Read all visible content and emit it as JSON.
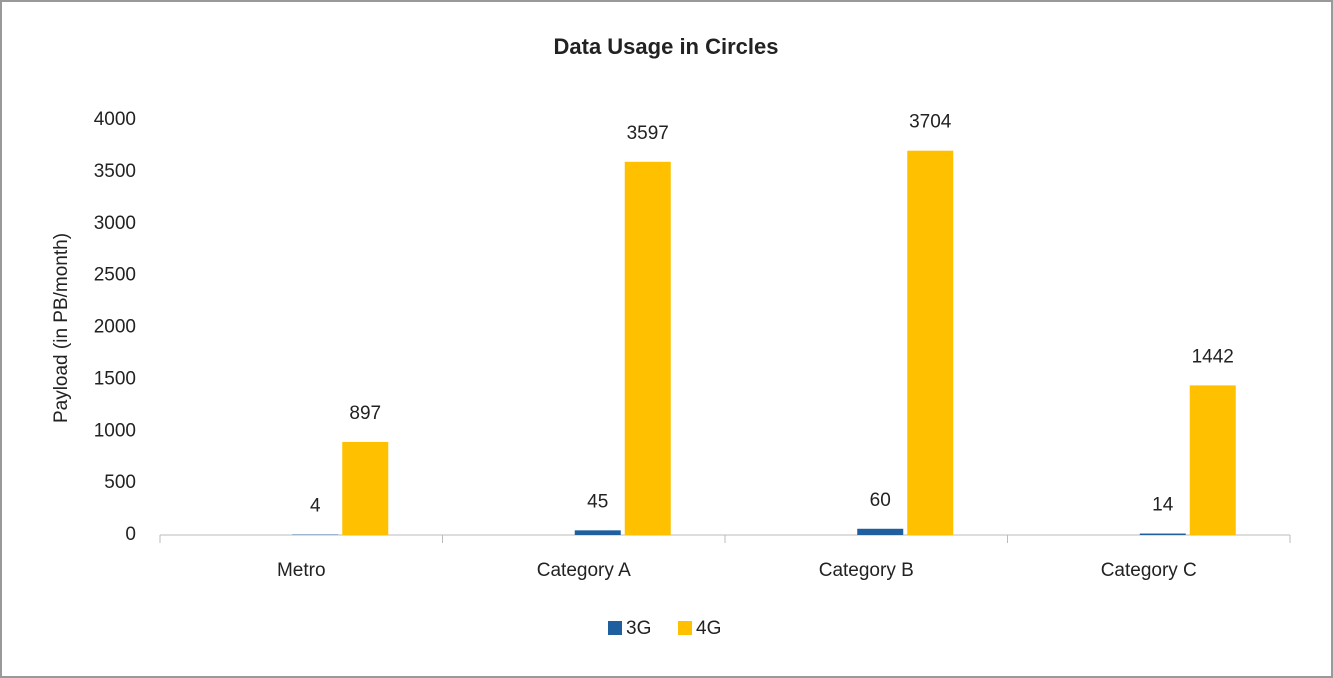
{
  "chart_data": {
    "type": "bar",
    "title": "Data Usage in Circles",
    "y_label": "Payload (in PB/month)",
    "categories": [
      "Metro",
      "Category A",
      "Category B",
      "Category C"
    ],
    "series": [
      {
        "name": "3G",
        "color": "#1f5fa0",
        "values": [
          4,
          45,
          60,
          14
        ]
      },
      {
        "name": "4G",
        "color": "#ffc000",
        "values": [
          897,
          3597,
          3704,
          1442
        ]
      }
    ],
    "ylim": [
      0,
      4000
    ],
    "yticks": [
      0,
      500,
      1000,
      1500,
      2000,
      2500,
      3000,
      3500,
      4000
    ],
    "grid": false,
    "legend": "bottom"
  }
}
